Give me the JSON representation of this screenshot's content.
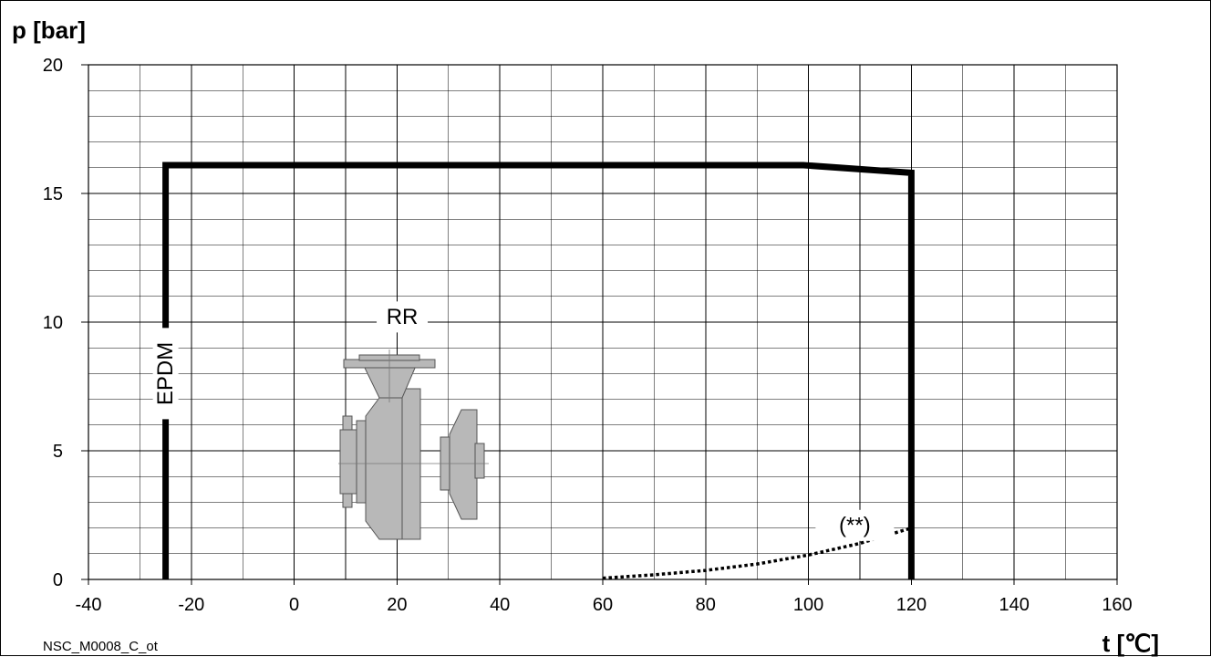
{
  "chart_data": {
    "type": "line",
    "title": "",
    "xlabel": "t [℃]",
    "ylabel": "p [bar]",
    "xlim": [
      -40,
      160
    ],
    "ylim": [
      0,
      20
    ],
    "x_ticks": [
      -40,
      -20,
      0,
      20,
      40,
      60,
      80,
      100,
      120,
      140,
      160
    ],
    "y_ticks": [
      0,
      5,
      10,
      15,
      20
    ],
    "grid": "on",
    "series": [
      {
        "name": "",
        "style": "solid-thick",
        "color": "#000000",
        "points": [
          [
            -25,
            0
          ],
          [
            -25,
            16.1
          ],
          [
            99,
            16.1
          ],
          [
            120,
            15.8
          ],
          [
            120,
            0
          ]
        ]
      },
      {
        "name": "",
        "style": "dotted",
        "color": "#000000",
        "points": [
          [
            60,
            0.05
          ],
          [
            70,
            0.18
          ],
          [
            80,
            0.35
          ],
          [
            90,
            0.6
          ],
          [
            100,
            0.95
          ],
          [
            110,
            1.4
          ],
          [
            120,
            2.0
          ]
        ]
      }
    ],
    "annotations": [
      {
        "text": "EPDM",
        "x": -25,
        "y": 8.0,
        "rotation": "vertical"
      },
      {
        "text": "RR",
        "x": 21,
        "y": 10.2,
        "rotation": "none"
      },
      {
        "text": "(**)",
        "x": 109,
        "y": 2.1,
        "rotation": "none"
      }
    ],
    "footnote": "NSC_M0008_C_ot",
    "colors": {
      "line": "#000000",
      "grid": "#000000",
      "pump_body": "#b8b8b8",
      "pump_edge": "#555555"
    }
  },
  "figure": {
    "pump_icon": "centrifugal-pump-icon"
  }
}
